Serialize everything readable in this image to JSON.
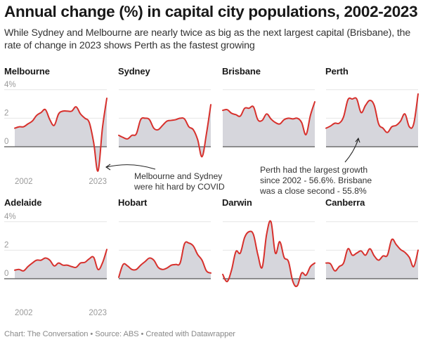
{
  "title": "Annual change (%) in capital city populations, 2002-2023",
  "subtitle": "While Sydney and Melbourne are nearly twice as big as the next largest capital (Brisbane), the rate of change in 2023 shows Perth as the fastest growing",
  "footer": "Chart: The Conversation • Source: ABS • Created with Datawrapper",
  "colors": {
    "line": "#d7302c",
    "area": "#d6d6dc",
    "baseline": "#555555",
    "grid": "#e6e6e6"
  },
  "chart_data": {
    "type": "area",
    "layout": "small-multiples",
    "title": "Annual change (%) in capital city populations, 2002-2023",
    "ylabel": "Annual change (%)",
    "ylim": [
      -2,
      4
    ],
    "y_ticks": [
      "4%",
      "2",
      "0"
    ],
    "y_tick_values": [
      4,
      2,
      0
    ],
    "x_tick_labels": [
      "2002",
      "2023"
    ],
    "grid": true,
    "x": [
      2002,
      2003,
      2004,
      2005,
      2006,
      2007,
      2008,
      2009,
      2010,
      2011,
      2012,
      2013,
      2014,
      2015,
      2016,
      2017,
      2018,
      2019,
      2020,
      2021,
      2022,
      2023
    ],
    "series": [
      {
        "name": "Melbourne",
        "values": [
          1.3,
          1.4,
          1.4,
          1.6,
          1.8,
          2.2,
          2.4,
          2.6,
          1.9,
          1.5,
          2.3,
          2.5,
          2.5,
          2.5,
          2.8,
          2.3,
          2.0,
          1.7,
          0.3,
          -1.7,
          1.3,
          3.4
        ]
      },
      {
        "name": "Sydney",
        "values": [
          0.8,
          0.65,
          0.55,
          0.8,
          0.9,
          1.9,
          2.0,
          1.9,
          1.3,
          1.2,
          1.5,
          1.8,
          1.85,
          1.9,
          2.0,
          1.95,
          1.4,
          1.2,
          0.5,
          -0.7,
          0.9,
          2.95
        ]
      },
      {
        "name": "Brisbane",
        "values": [
          2.55,
          2.6,
          2.35,
          2.25,
          2.15,
          2.7,
          2.7,
          2.8,
          1.9,
          1.85,
          2.3,
          1.95,
          1.7,
          1.6,
          1.9,
          2.0,
          1.95,
          2.0,
          1.7,
          0.85,
          2.2,
          3.15
        ]
      },
      {
        "name": "Perth",
        "values": [
          1.3,
          1.45,
          1.65,
          1.65,
          2.1,
          3.3,
          3.35,
          3.35,
          2.4,
          2.9,
          3.25,
          2.9,
          1.6,
          1.3,
          1.0,
          1.4,
          1.5,
          1.8,
          2.3,
          1.4,
          1.6,
          3.7
        ]
      },
      {
        "name": "Adelaide",
        "values": [
          0.6,
          0.65,
          0.55,
          0.85,
          1.1,
          1.3,
          1.3,
          1.45,
          1.3,
          0.9,
          1.1,
          0.95,
          0.95,
          0.85,
          0.8,
          1.1,
          1.15,
          1.4,
          1.5,
          0.65,
          1.1,
          2.05
        ]
      },
      {
        "name": "Hobart",
        "values": [
          0.1,
          1.0,
          0.9,
          0.65,
          0.65,
          0.95,
          1.2,
          1.45,
          1.3,
          0.8,
          0.65,
          0.75,
          0.95,
          1.0,
          1.1,
          2.45,
          2.5,
          2.3,
          1.7,
          1.3,
          0.55,
          0.4
        ]
      },
      {
        "name": "Darwin",
        "values": [
          0.3,
          -0.2,
          0.6,
          1.9,
          1.8,
          2.9,
          3.3,
          3.1,
          1.7,
          0.8,
          3.1,
          4.0,
          1.8,
          2.6,
          1.5,
          1.2,
          -0.2,
          -0.5,
          0.4,
          0.25,
          0.85,
          1.1
        ]
      },
      {
        "name": "Canberra",
        "values": [
          1.1,
          1.05,
          0.55,
          0.85,
          1.1,
          2.1,
          1.65,
          1.8,
          1.95,
          1.65,
          2.1,
          1.6,
          1.3,
          1.6,
          1.65,
          2.75,
          2.4,
          2.05,
          1.85,
          1.5,
          0.85,
          2.0
        ]
      }
    ],
    "annotations": [
      {
        "id": "covid",
        "lines": [
          "Melbourne and Sydney",
          "were hit hard by COVID"
        ]
      },
      {
        "id": "perth",
        "lines": [
          "Perth had the largest growth",
          "since 2002 - 56.6%. Brisbane",
          "was a close second - 55.8%"
        ]
      }
    ]
  }
}
